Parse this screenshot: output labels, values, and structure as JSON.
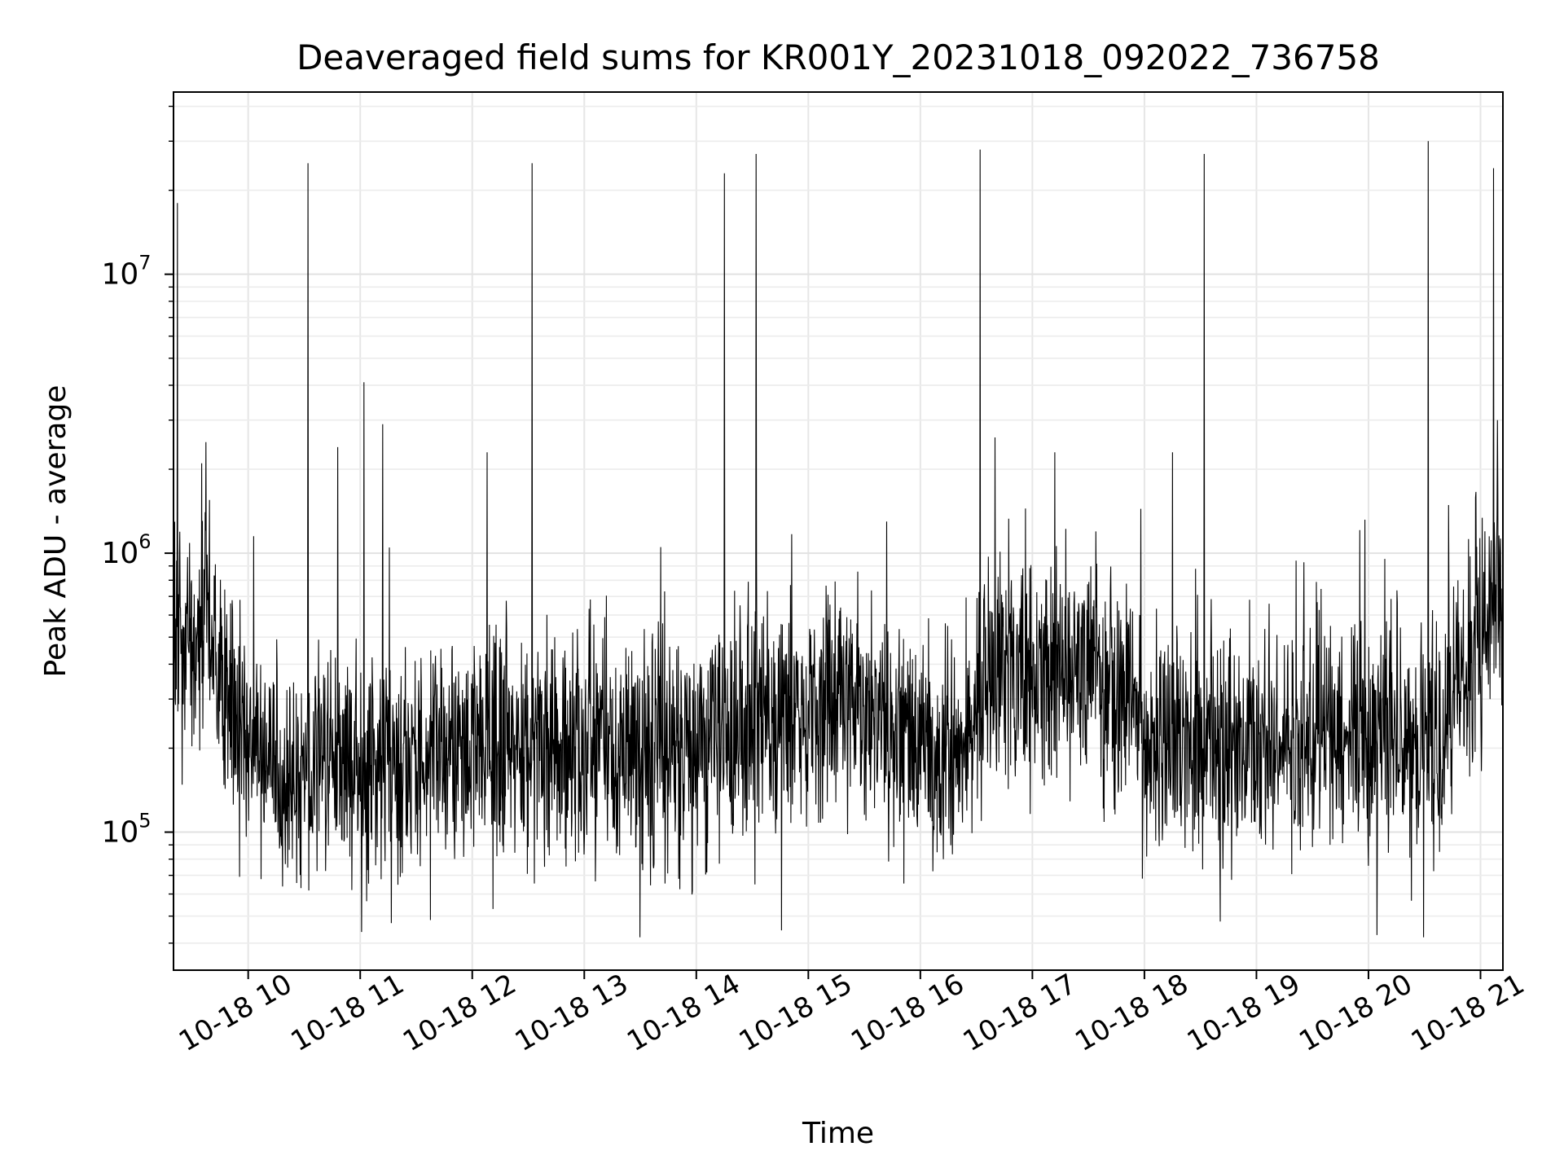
{
  "chart_data": {
    "type": "line",
    "title": "Deaveraged field sums for KR001Y_20231018_092022_736758",
    "xlabel": "Time",
    "ylabel": "Peak ADU - average",
    "x_ticks": [
      "10-18 10",
      "10-18 11",
      "10-18 12",
      "10-18 13",
      "10-18 14",
      "10-18 15",
      "10-18 16",
      "10-18 17",
      "10-18 18",
      "10-18 19",
      "10-18 20",
      "10-18 21"
    ],
    "x_range": [
      "2023-10-18 09:20",
      "2023-10-18 21:12"
    ],
    "y_scale": "log",
    "y_ticks": [
      {
        "value": 100000,
        "base": "10",
        "exp": "5"
      },
      {
        "value": 1000000,
        "base": "10",
        "exp": "6"
      },
      {
        "value": 10000000,
        "base": "10",
        "exp": "7"
      }
    ],
    "ylim": [
      32000,
      45000000
    ],
    "grid": true,
    "line_color": "#000000",
    "baseline": [
      {
        "t": "2023-10-18 09:20",
        "v": 550000
      },
      {
        "t": "2023-10-18 09:30",
        "v": 380000
      },
      {
        "t": "2023-10-18 09:37",
        "v": 650000
      },
      {
        "t": "2023-10-18 09:45",
        "v": 300000
      },
      {
        "t": "2023-10-18 10:00",
        "v": 190000
      },
      {
        "t": "2023-10-18 10:30",
        "v": 160000
      },
      {
        "t": "2023-10-18 11:00",
        "v": 180000
      },
      {
        "t": "2023-10-18 12:00",
        "v": 200000
      },
      {
        "t": "2023-10-18 13:00",
        "v": 190000
      },
      {
        "t": "2023-10-18 14:00",
        "v": 205000
      },
      {
        "t": "2023-10-18 14:30",
        "v": 230000
      },
      {
        "t": "2023-10-18 15:00",
        "v": 270000
      },
      {
        "t": "2023-10-18 15:20",
        "v": 300000
      },
      {
        "t": "2023-10-18 15:45",
        "v": 230000
      },
      {
        "t": "2023-10-18 16:20",
        "v": 180000
      },
      {
        "t": "2023-10-18 16:35",
        "v": 350000
      },
      {
        "t": "2023-10-18 17:00",
        "v": 380000
      },
      {
        "t": "2023-10-18 17:30",
        "v": 400000
      },
      {
        "t": "2023-10-18 17:50",
        "v": 300000
      },
      {
        "t": "2023-10-18 18:00",
        "v": 240000
      },
      {
        "t": "2023-10-18 19:00",
        "v": 200000
      },
      {
        "t": "2023-10-18 19:30",
        "v": 210000
      },
      {
        "t": "2023-10-18 20:00",
        "v": 220000
      },
      {
        "t": "2023-10-18 20:40",
        "v": 200000
      },
      {
        "t": "2023-10-18 20:48",
        "v": 330000
      },
      {
        "t": "2023-10-18 21:00",
        "v": 520000
      },
      {
        "t": "2023-10-18 21:12",
        "v": 800000
      }
    ],
    "spikes": [
      {
        "t": "2023-10-18 09:22",
        "v": 18000000
      },
      {
        "t": "2023-10-18 09:35",
        "v": 2100000
      },
      {
        "t": "2023-10-18 10:03",
        "v": 1150000
      },
      {
        "t": "2023-10-18 10:32",
        "v": 25000000
      },
      {
        "t": "2023-10-18 10:48",
        "v": 2400000
      },
      {
        "t": "2023-10-18 11:02",
        "v": 4100000
      },
      {
        "t": "2023-10-18 11:12",
        "v": 2900000
      },
      {
        "t": "2023-10-18 12:08",
        "v": 2300000
      },
      {
        "t": "2023-10-18 12:32",
        "v": 25000000
      },
      {
        "t": "2023-10-18 14:15",
        "v": 23000000
      },
      {
        "t": "2023-10-18 14:32",
        "v": 27000000
      },
      {
        "t": "2023-10-18 16:32",
        "v": 28000000
      },
      {
        "t": "2023-10-18 16:40",
        "v": 2600000
      },
      {
        "t": "2023-10-18 17:12",
        "v": 2300000
      },
      {
        "t": "2023-10-18 18:15",
        "v": 2300000
      },
      {
        "t": "2023-10-18 18:32",
        "v": 27000000
      },
      {
        "t": "2023-10-18 20:32",
        "v": 30000000
      },
      {
        "t": "2023-10-18 21:07",
        "v": 24000000
      },
      {
        "t": "2023-10-18 21:09",
        "v": 3000000
      }
    ]
  }
}
